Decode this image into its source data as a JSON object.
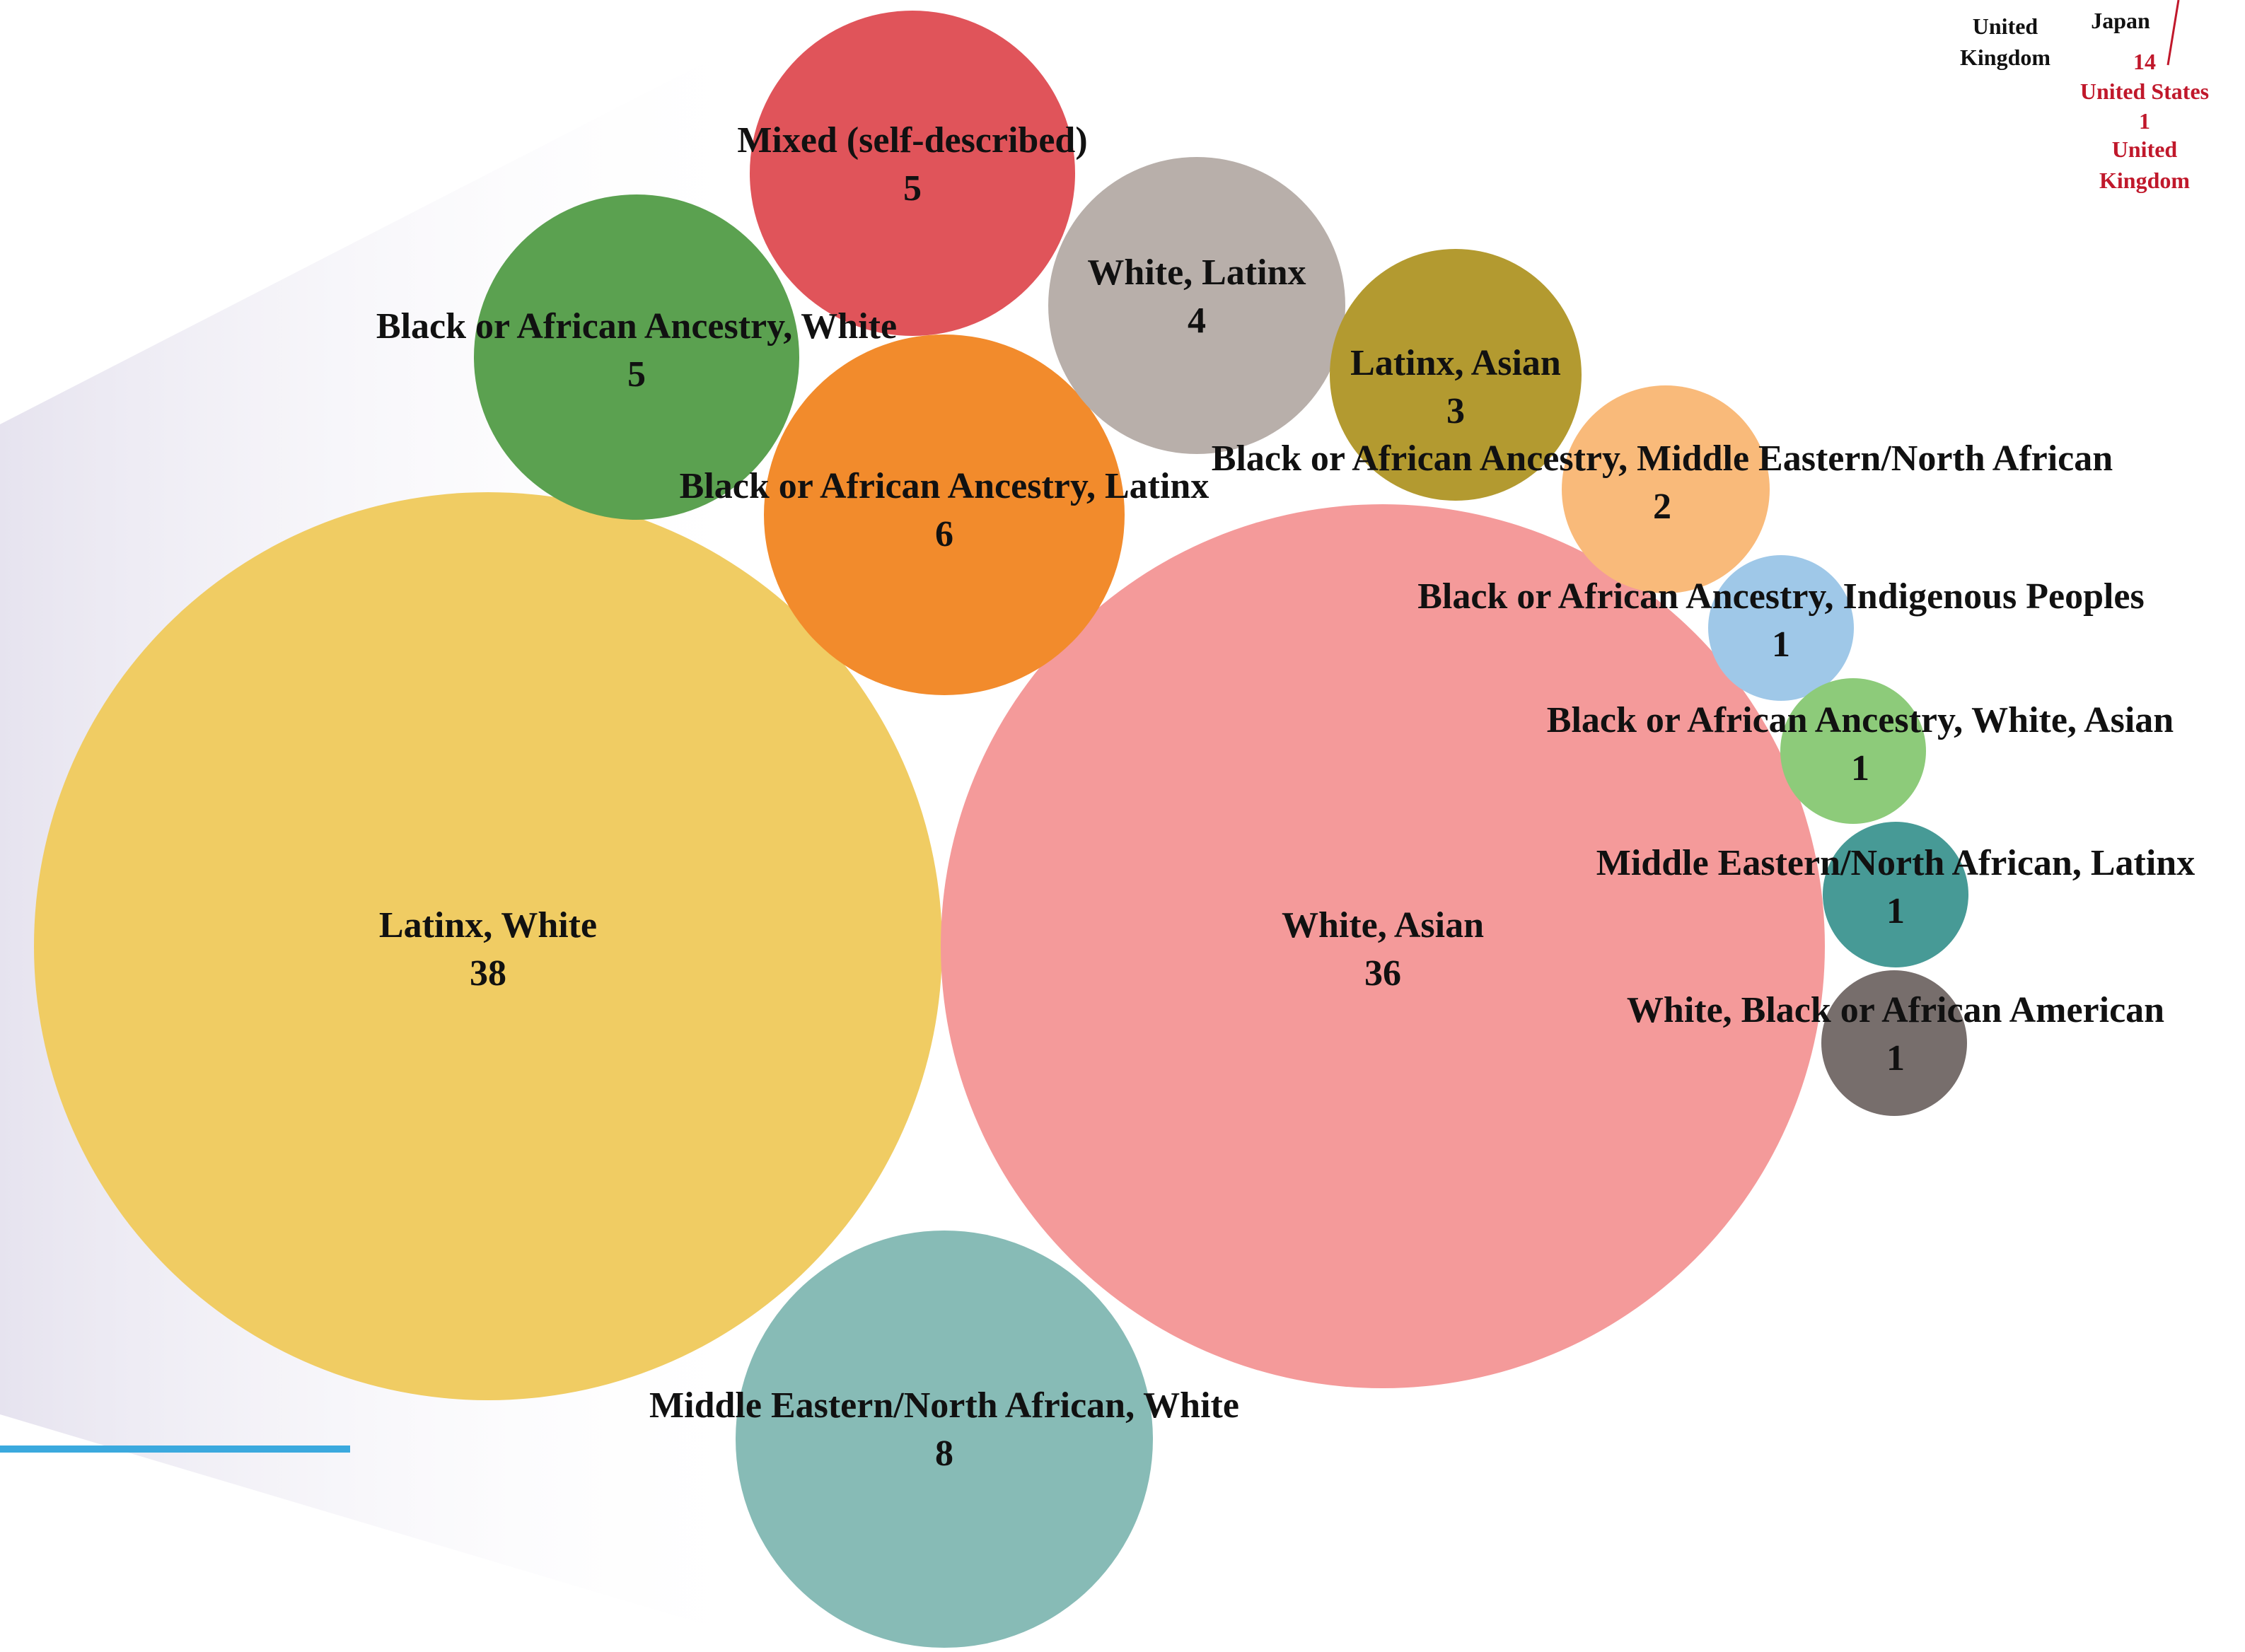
{
  "chart_data": {
    "type": "bubble",
    "unit_note": "",
    "bubbles": [
      {
        "label": "Latinx, White",
        "value": 38,
        "color": "#F0CC63"
      },
      {
        "label": "White, Asian",
        "value": 36,
        "color": "#F49A9A"
      },
      {
        "label": "Middle Eastern/North African, White",
        "value": 8,
        "color": "#87BBB6"
      },
      {
        "label": "Black or African Ancestry, Latinx",
        "value": 6,
        "color": "#F28B2C"
      },
      {
        "label": "Mixed (self-described)",
        "value": 5,
        "color": "#E0545A"
      },
      {
        "label": "Black or African Ancestry, White",
        "value": 5,
        "color": "#5BA150"
      },
      {
        "label": "White, Latinx",
        "value": 4,
        "color": "#B8AFAA"
      },
      {
        "label": "Latinx, Asian",
        "value": 3,
        "color": "#B39A30"
      },
      {
        "label": "Black or African Ancestry, Middle Eastern/North African",
        "value": 2,
        "color": "#F9BA7A"
      },
      {
        "label": "Black or African Ancestry, Indigenous Peoples",
        "value": 1,
        "color": "#9FC8E8"
      },
      {
        "label": "Black or African Ancestry, White, Asian",
        "value": 1,
        "color": "#8DCB7A"
      },
      {
        "label": "Middle Eastern/North African, Latinx",
        "value": 1,
        "color": "#479A96"
      },
      {
        "label": "White, Black or African American",
        "value": 1,
        "color": "#776E6C"
      }
    ]
  },
  "corner": {
    "left_label": [
      "United",
      "Kingdom"
    ],
    "mid_label": "Japan",
    "red_items": [
      "14",
      "United States",
      "1",
      "United",
      "Kingdom"
    ],
    "red_color": "#C0182B"
  },
  "colors": {
    "accent_line": "#3BA9DE",
    "background_shade": "#EDEBF3"
  }
}
